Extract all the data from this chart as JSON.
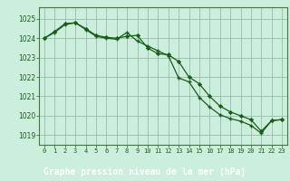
{
  "title": "Graphe pression niveau de la mer (hPa)",
  "bg_color": "#cceedd",
  "label_bg_color": "#336633",
  "label_text_color": "#ffffff",
  "grid_color": "#99bbaa",
  "line_color": "#1a5c1a",
  "marker_color": "#1a5c1a",
  "spine_color": "#447744",
  "xlim": [
    -0.5,
    23.5
  ],
  "ylim": [
    1018.5,
    1025.6
  ],
  "yticks": [
    1019,
    1020,
    1021,
    1022,
    1023,
    1024,
    1025
  ],
  "xticks": [
    0,
    1,
    2,
    3,
    4,
    5,
    6,
    7,
    8,
    9,
    10,
    11,
    12,
    13,
    14,
    15,
    16,
    17,
    18,
    19,
    20,
    21,
    22,
    23
  ],
  "series1": [
    1024.0,
    1024.35,
    1024.75,
    1024.8,
    1024.5,
    1024.15,
    1024.05,
    1024.0,
    1024.1,
    1024.15,
    1023.5,
    1023.2,
    1023.15,
    1022.8,
    1022.0,
    1021.65,
    1021.0,
    1020.5,
    1020.2,
    1020.0,
    1019.8,
    1019.2,
    1019.75,
    1019.8
  ],
  "series2": [
    1024.0,
    1024.3,
    1024.7,
    1024.8,
    1024.45,
    1024.1,
    1024.0,
    1023.95,
    1024.3,
    1023.85,
    1023.6,
    1023.35,
    1023.1,
    1021.95,
    1021.75,
    1020.95,
    1020.45,
    1020.05,
    1019.85,
    1019.72,
    1019.5,
    1019.1,
    1019.75,
    1019.8
  ]
}
